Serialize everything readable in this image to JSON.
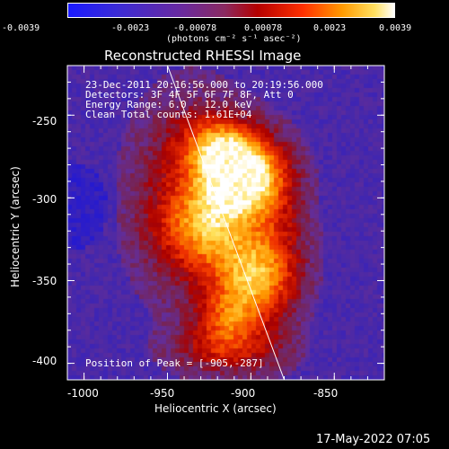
{
  "colorbar": {
    "tick_labels": [
      "-0.0039",
      "-0.0023",
      "-0.00078",
      "0.00078",
      "0.0023",
      "0.0039"
    ],
    "units_label": "(photons cm⁻² s⁻¹ asec⁻²)"
  },
  "plot": {
    "title": "Reconstructed RHESSI Image",
    "info": [
      "23-Dec-2011 20:16:56.000 to 20:19:56.000",
      "Detectors: 3F 4F 5F 6F 7F 8F, Att 0",
      "Energy Range: 6.0 - 12.0 keV",
      "Clean     Total counts: 1.61E+04"
    ],
    "peak_label": "Position of Peak = [-905,-287]",
    "xlabel": "Heliocentric X (arcsec)",
    "ylabel": "Heliocentric Y (arcsec)",
    "x_ticks": [
      "-1000",
      "-950",
      "-900",
      "-850"
    ],
    "y_ticks": [
      "-250",
      "-300",
      "-350",
      "-400"
    ]
  },
  "footer": {
    "timestamp": "17-May-2022 07:05"
  },
  "chart_data": {
    "type": "heatmap",
    "title": "Reconstructed RHESSI Image",
    "xlabel": "Heliocentric X (arcsec)",
    "ylabel": "Heliocentric Y (arcsec)",
    "xlim": [
      -1010,
      -820
    ],
    "ylim": [
      -410,
      -220
    ],
    "x_ticks": [
      -1000,
      -950,
      -900,
      -850
    ],
    "y_ticks": [
      -250,
      -300,
      -350,
      -400
    ],
    "colorbar_range": [
      -0.0039,
      0.0039
    ],
    "colormap": "blue-purple-red-yellow-white",
    "peak": [
      -905,
      -287
    ],
    "limb_line": {
      "x": [
        -950,
        -880
      ],
      "y": [
        -220,
        -410
      ]
    },
    "sources": [
      {
        "x": -905,
        "y": -287,
        "sx": 16,
        "sy": 14,
        "amp": 1.0
      },
      {
        "x": -918,
        "y": -268,
        "sx": 16,
        "sy": 12,
        "amp": 0.55
      },
      {
        "x": -922,
        "y": -318,
        "sx": 20,
        "sy": 18,
        "amp": 0.55
      },
      {
        "x": -900,
        "y": -348,
        "sx": 15,
        "sy": 14,
        "amp": 0.55
      },
      {
        "x": -912,
        "y": -372,
        "sx": 14,
        "sy": 12,
        "amp": 0.5
      },
      {
        "x": -935,
        "y": -300,
        "sx": 24,
        "sy": 40,
        "amp": 0.35
      },
      {
        "x": -915,
        "y": -392,
        "sx": 22,
        "sy": 10,
        "amp": 0.35
      },
      {
        "x": -885,
        "y": -330,
        "sx": 14,
        "sy": 35,
        "amp": 0.3
      }
    ]
  }
}
